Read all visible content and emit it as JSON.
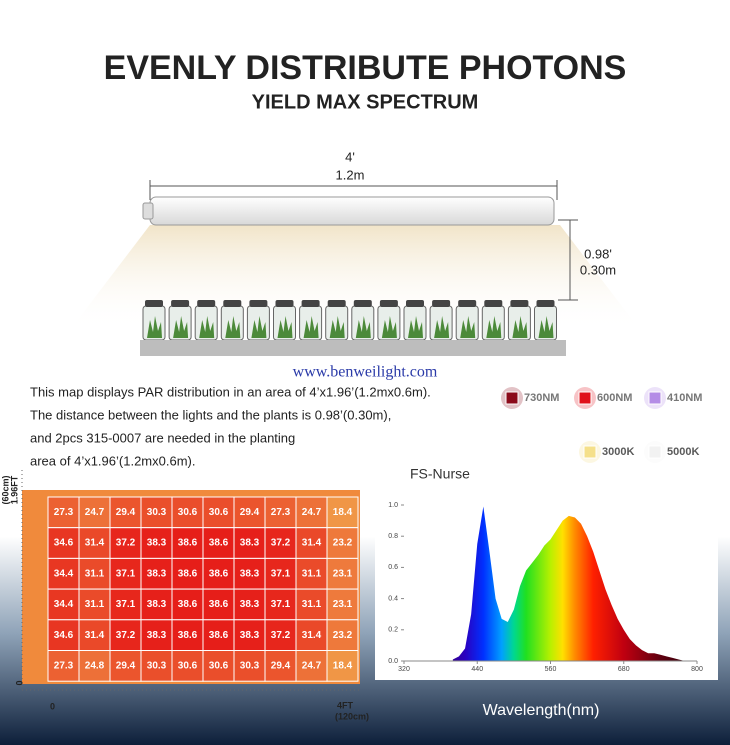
{
  "header": {
    "title": "EVENLY DISTRIBUTE PHOTONS",
    "subtitle": "YIELD MAX SPECTRUM"
  },
  "diagram": {
    "length_ft": "4'",
    "length_m": "1.2m",
    "height_ft": "0.98'",
    "height_m": "0.30m"
  },
  "watermark": "www.benweilight.com",
  "description": [
    "This map displays PAR distribution in an area of 4’x1.96’(1.2mx0.6m).",
    "The distance between the lights and the plants is 0.98’(0.30m),",
    "and 2pcs 315-0007 are needed in the planting",
    "area of 4’x1.96’(1.2mx0.6m)."
  ],
  "legend": [
    {
      "name": "730NM",
      "color": "#8b0a1a"
    },
    {
      "name": "600NM",
      "color": "#e0101a"
    },
    {
      "name": "410NM",
      "color": "#b48ce6"
    },
    {
      "name": "3000K",
      "color": "#f5e08a"
    },
    {
      "name": "5000K",
      "color": "#f2f2f2"
    }
  ],
  "chart_data": [
    {
      "type": "heatmap",
      "x_axis": {
        "start": "0",
        "end": "4FT",
        "end_unit": "(120cm)"
      },
      "y_axis": {
        "start": "0",
        "end": "1.96FT",
        "end_unit": "(60cm)"
      },
      "rows": [
        [
          27.3,
          24.7,
          29.4,
          30.3,
          30.6,
          30.6,
          29.4,
          27.3,
          24.7,
          18.4
        ],
        [
          34.6,
          31.4,
          37.2,
          38.3,
          38.6,
          38.6,
          38.3,
          37.2,
          31.4,
          23.2
        ],
        [
          34.4,
          31.1,
          37.1,
          38.3,
          38.6,
          38.6,
          38.3,
          37.1,
          31.1,
          23.1
        ],
        [
          34.4,
          31.1,
          37.1,
          38.3,
          38.6,
          38.6,
          38.3,
          37.1,
          31.1,
          23.1
        ],
        [
          34.6,
          31.4,
          37.2,
          38.3,
          38.6,
          38.6,
          38.3,
          37.2,
          31.4,
          23.2
        ],
        [
          27.3,
          24.8,
          29.4,
          30.3,
          30.6,
          30.6,
          30.3,
          29.4,
          24.7,
          18.4
        ]
      ]
    },
    {
      "type": "area",
      "title": "FS-Nurse",
      "x_label": "Wavelength(nm)",
      "x": [
        400,
        410,
        420,
        430,
        440,
        450,
        460,
        470,
        480,
        490,
        500,
        510,
        520,
        530,
        540,
        550,
        560,
        570,
        580,
        590,
        600,
        610,
        620,
        630,
        640,
        650,
        660,
        670,
        680,
        690,
        700,
        710,
        720,
        730,
        740,
        750,
        760,
        770,
        780
      ],
      "values": [
        0.01,
        0.03,
        0.08,
        0.3,
        0.75,
        0.99,
        0.7,
        0.4,
        0.27,
        0.25,
        0.33,
        0.48,
        0.58,
        0.63,
        0.68,
        0.74,
        0.78,
        0.84,
        0.9,
        0.93,
        0.92,
        0.88,
        0.8,
        0.7,
        0.58,
        0.46,
        0.36,
        0.27,
        0.2,
        0.14,
        0.1,
        0.07,
        0.05,
        0.05,
        0.04,
        0.03,
        0.02,
        0.01,
        0.0
      ],
      "xlim": [
        320,
        800
      ],
      "ylim": [
        0,
        1
      ],
      "xticks": [
        320,
        440,
        560,
        680,
        800
      ],
      "yticks": [
        {
          "value": 0,
          "label": "0.0"
        },
        {
          "value": 0.2,
          "label": "0.2"
        },
        {
          "value": 0.4,
          "label": "0.4"
        },
        {
          "value": 0.6,
          "label": "0.6"
        },
        {
          "value": 0.8,
          "label": "0.8"
        },
        {
          "value": 1,
          "label": "1.0"
        }
      ]
    }
  ]
}
